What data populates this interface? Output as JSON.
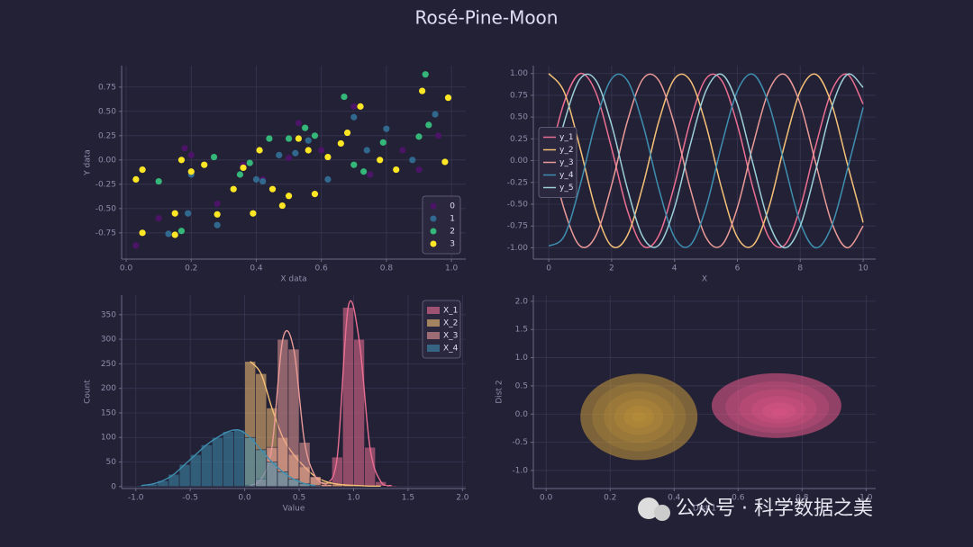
{
  "title": "Rosé-Pine-Moon",
  "watermark": "公众号 · 科学数据之美",
  "chart_data": [
    {
      "type": "scatter",
      "x_label": "X data",
      "y_label": "Y data",
      "legend": "lower right",
      "grid": true,
      "xlim": [
        -0.014,
        1.044
      ],
      "ylim": [
        -1.02,
        0.97
      ],
      "xticks": [
        {
          "value": 0,
          "label": "0.0"
        },
        {
          "value": 0.2,
          "label": "0.2"
        },
        {
          "value": 0.4,
          "label": "0.4"
        },
        {
          "value": 0.6,
          "label": "0.6"
        },
        {
          "value": 0.8,
          "label": "0.8"
        },
        {
          "value": 1,
          "label": "1.0"
        }
      ],
      "yticks": [
        {
          "value": -0.75,
          "label": "-0.75"
        },
        {
          "value": -0.5,
          "label": "-0.50"
        },
        {
          "value": -0.25,
          "label": "-0.25"
        },
        {
          "value": 0,
          "label": "0.00"
        },
        {
          "value": 0.25,
          "label": "0.25"
        },
        {
          "value": 0.5,
          "label": "0.50"
        },
        {
          "value": 0.75,
          "label": "0.75"
        }
      ],
      "series": [
        {
          "name": "0",
          "color": "#4b1466",
          "x": [
            0.03,
            0.1,
            0.18,
            0.2,
            0.28,
            0.36,
            0.42,
            0.5,
            0.53,
            0.6,
            0.7,
            0.75,
            0.85,
            0.9,
            0.96
          ],
          "values": [
            -0.88,
            -0.6,
            0.12,
            0.05,
            -0.45,
            -0.05,
            -0.2,
            0.02,
            0.38,
            0.1,
            0.55,
            -0.15,
            0.1,
            -0.1,
            0.25
          ]
        },
        {
          "name": "1",
          "color": "#31688e",
          "x": [
            0.13,
            0.19,
            0.2,
            0.28,
            0.4,
            0.47,
            0.52,
            0.56,
            0.62,
            0.7,
            0.74,
            0.8,
            0.88,
            0.95,
            0.42
          ],
          "values": [
            -0.76,
            -0.55,
            -0.15,
            -0.67,
            -0.2,
            0.05,
            0.07,
            0.2,
            -0.2,
            0.44,
            0.1,
            0.32,
            0.0,
            0.47,
            -0.22
          ]
        },
        {
          "name": "2",
          "color": "#35b779",
          "x": [
            0.1,
            0.17,
            0.27,
            0.35,
            0.38,
            0.44,
            0.5,
            0.55,
            0.58,
            0.67,
            0.7,
            0.73,
            0.79,
            0.9,
            0.92,
            0.93
          ],
          "values": [
            -0.22,
            -0.73,
            0.03,
            -0.15,
            -0.03,
            0.22,
            0.22,
            0.33,
            0.25,
            0.65,
            -0.05,
            -0.12,
            0.18,
            0.24,
            0.88,
            0.36
          ]
        },
        {
          "name": "3",
          "color": "#fde725",
          "x": [
            0.03,
            0.05,
            0.05,
            0.15,
            0.15,
            0.17,
            0.2,
            0.24,
            0.28,
            0.33,
            0.36,
            0.39,
            0.41,
            0.45,
            0.48,
            0.5,
            0.53,
            0.56,
            0.58,
            0.62,
            0.66,
            0.68,
            0.72,
            0.78,
            0.83,
            0.91,
            0.98,
            0.99
          ],
          "values": [
            -0.2,
            -0.1,
            -0.75,
            -0.55,
            -0.77,
            0.0,
            -0.12,
            -0.05,
            -0.56,
            -0.3,
            -0.08,
            -0.55,
            0.1,
            -0.3,
            -0.47,
            -0.37,
            0.22,
            0.1,
            -0.35,
            0.03,
            0.17,
            0.28,
            0.55,
            0.0,
            -0.1,
            0.71,
            -0.02,
            0.64
          ]
        }
      ]
    },
    {
      "type": "line",
      "x_label": "X",
      "legend": "center left",
      "grid": true,
      "xlim": [
        -0.49,
        10.4
      ],
      "ylim": [
        -1.13,
        1.09
      ],
      "xticks": [
        0,
        2,
        4,
        6,
        8,
        10
      ],
      "yticks": [
        {
          "value": -1,
          "label": "-1.00"
        },
        {
          "value": -0.75,
          "label": "-0.75"
        },
        {
          "value": -0.5,
          "label": "-0.50"
        },
        {
          "value": -0.25,
          "label": "-0.25"
        },
        {
          "value": 0,
          "label": "0.00"
        },
        {
          "value": 0.25,
          "label": "0.25"
        },
        {
          "value": 0.5,
          "label": "0.50"
        },
        {
          "value": 0.75,
          "label": "0.75"
        },
        {
          "value": 1,
          "label": "1.00"
        }
      ],
      "x": [
        0,
        0.5,
        1,
        1.5,
        2,
        2.5,
        3,
        3.5,
        4,
        4.5,
        5,
        5.5,
        6,
        6.5,
        7,
        7.5,
        8,
        8.5,
        9,
        9.5,
        10
      ],
      "series": [
        {
          "name": "y_1",
          "color": "#eb6f92",
          "values": [
            0,
            0.68,
            1.0,
            0.78,
            0.14,
            -0.57,
            -0.98,
            -0.86,
            -0.28,
            0.45,
            0.94,
            0.92,
            0.41,
            -0.32,
            -0.88,
            -0.97,
            -0.54,
            0.18,
            0.8,
            0.99,
            0.65
          ]
        },
        {
          "name": "y_2",
          "color": "#f6c177",
          "values": [
            1.0,
            0.78,
            0.14,
            -0.57,
            -0.98,
            -0.86,
            -0.28,
            0.45,
            0.94,
            0.92,
            0.41,
            -0.32,
            -0.88,
            -0.97,
            -0.54,
            0.18,
            0.8,
            0.99,
            0.65,
            -0.04,
            -0.71
          ]
        },
        {
          "name": "y_3",
          "color": "#ea9a97",
          "values": [
            0.14,
            -0.57,
            -0.98,
            -0.86,
            -0.28,
            0.45,
            0.94,
            0.92,
            0.41,
            -0.32,
            -0.88,
            -0.97,
            -0.54,
            0.18,
            0.8,
            0.99,
            0.65,
            -0.04,
            -0.71,
            -1.0,
            -0.75
          ]
        },
        {
          "name": "y_4",
          "color": "#3e8fb0",
          "values": [
            -0.98,
            -0.86,
            -0.28,
            0.45,
            0.94,
            0.92,
            0.41,
            -0.32,
            -0.88,
            -0.97,
            -0.54,
            0.18,
            0.8,
            0.99,
            0.65,
            -0.04,
            -0.71,
            -1.0,
            -0.75,
            -0.1,
            0.61
          ]
        },
        {
          "name": "y_5",
          "color": "#9ccfd8",
          "values": [
            -0.28,
            0.45,
            0.94,
            0.92,
            0.41,
            -0.32,
            -0.88,
            -0.97,
            -0.54,
            0.18,
            0.8,
            0.99,
            0.65,
            -0.04,
            -0.71,
            -1.0,
            -0.75,
            -0.1,
            0.61,
            0.99,
            0.84
          ]
        }
      ]
    },
    {
      "type": "histogram",
      "x_label": "Value",
      "y_label": "Count",
      "legend": "upper right",
      "grid": true,
      "xlim": [
        -1.13,
        2.03
      ],
      "ylim": [
        -4,
        390
      ],
      "xticks": [
        {
          "value": -1,
          "label": "-1.0"
        },
        {
          "value": -0.5,
          "label": "-0.5"
        },
        {
          "value": 0,
          "label": "0.0"
        },
        {
          "value": 0.5,
          "label": "0.5"
        },
        {
          "value": 1,
          "label": "1.0"
        },
        {
          "value": 1.5,
          "label": "1.5"
        },
        {
          "value": 2,
          "label": "2.0"
        }
      ],
      "yticks": [
        0,
        50,
        100,
        150,
        200,
        250,
        300,
        350
      ],
      "bins": [
        -1.0,
        -0.9,
        -0.8,
        -0.7,
        -0.6,
        -0.5,
        -0.4,
        -0.3,
        -0.2,
        -0.1,
        0.0,
        0.1,
        0.2,
        0.3,
        0.4,
        0.5,
        0.6,
        0.7,
        0.8,
        0.9,
        1.0,
        1.1,
        1.2,
        1.3,
        1.4,
        1.5,
        1.6,
        1.7,
        1.8,
        1.9
      ],
      "series": [
        {
          "name": "X_1",
          "color": "#eb6f92",
          "values": [
            0,
            0,
            0,
            0,
            0,
            0,
            0,
            0,
            0,
            0,
            0,
            0,
            0,
            0,
            0,
            0,
            0,
            5,
            60,
            365,
            300,
            80,
            10,
            2,
            0,
            0,
            0,
            0,
            0
          ]
        },
        {
          "name": "X_2",
          "color": "#f6c177",
          "values": [
            0,
            0,
            0,
            0,
            0,
            0,
            0,
            0,
            0,
            0,
            255,
            230,
            160,
            100,
            65,
            40,
            20,
            10,
            5,
            3,
            2,
            1,
            1,
            0,
            0,
            0,
            0,
            0,
            0
          ]
        },
        {
          "name": "X_3",
          "color": "#ea9a97",
          "values": [
            0,
            0,
            0,
            0,
            0,
            0,
            0,
            0,
            0,
            0,
            2,
            15,
            80,
            300,
            280,
            90,
            20,
            4,
            0,
            0,
            0,
            0,
            0,
            0,
            0,
            0,
            0,
            0,
            0
          ]
        },
        {
          "name": "X_4",
          "color": "#3e8fb0",
          "values": [
            2,
            5,
            12,
            25,
            45,
            65,
            85,
            100,
            112,
            115,
            100,
            75,
            50,
            30,
            15,
            6,
            2,
            0,
            0,
            0,
            0,
            0,
            0,
            0,
            0,
            0,
            0,
            0,
            0
          ]
        }
      ]
    },
    {
      "type": "kde2d",
      "x_label": "Dist 1",
      "y_label": "Dist 2",
      "grid": true,
      "xlim": [
        -0.04,
        1.03
      ],
      "ylim": [
        -1.32,
        2.11
      ],
      "xticks": [
        {
          "value": 0,
          "label": "0.0"
        },
        {
          "value": 0.2,
          "label": "0.2"
        },
        {
          "value": 0.4,
          "label": "0.4"
        },
        {
          "value": 0.6,
          "label": "0.6"
        },
        {
          "value": 0.8,
          "label": "0.8"
        },
        {
          "value": 1,
          "label": "1.0"
        }
      ],
      "yticks": [
        {
          "value": -1,
          "label": "-1.0"
        },
        {
          "value": -0.5,
          "label": "-0.5"
        },
        {
          "value": 0,
          "label": "0.0"
        },
        {
          "value": 0.5,
          "label": "0.5"
        },
        {
          "value": 1,
          "label": "1.0"
        },
        {
          "value": 1.5,
          "label": "1.5"
        },
        {
          "value": 2,
          "label": "2.0"
        }
      ],
      "x": [
        0.29,
        0.72
      ],
      "values": [
        -0.05,
        0.15
      ],
      "colors": [
        "#c99a3c",
        "#eb5d8c"
      ]
    }
  ]
}
